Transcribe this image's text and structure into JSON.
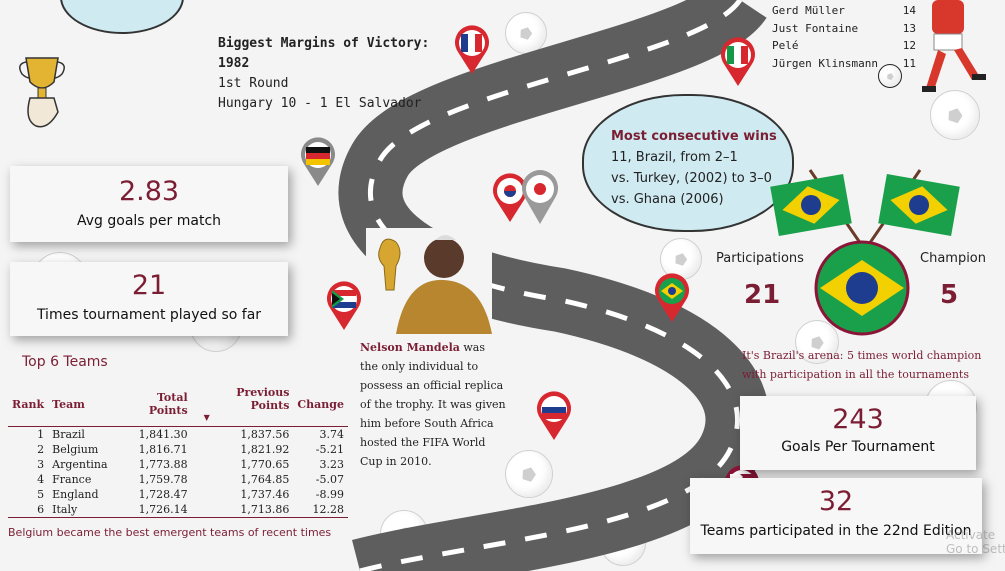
{
  "margins": {
    "title": "Biggest Margins of Victory:",
    "year": "1982",
    "round": "1st Round",
    "match": "Hungary 10 - 1 El Salvador"
  },
  "scorers": [
    {
      "name": "Gerd Müller",
      "goals": "14"
    },
    {
      "name": "Just Fontaine",
      "goals": "13"
    },
    {
      "name": "Pelé",
      "goals": "12"
    },
    {
      "name": "Jürgen Klinsmann",
      "goals": "11"
    }
  ],
  "stats": {
    "avg_goals_value": "2.83",
    "avg_goals_label": "Avg goals per match",
    "times_played_value": "21",
    "times_played_label": "Times tournament played so far",
    "goals_per_tournament_value": "243",
    "goals_per_tournament_label": "Goals Per Tournament",
    "teams_value": "32",
    "teams_label": "Teams participated in the 22nd Edition"
  },
  "wins": {
    "title": "Most consecutive wins",
    "line1": "11, Brazil, from 2–1",
    "line2": "vs. Turkey, (2002) to 3–0",
    "line3": "vs. Ghana (2006)"
  },
  "brazil": {
    "participations_label": "Participations",
    "participations_value": "21",
    "champion_label": "Champion",
    "champion_value": "5",
    "note_line1": "It's Brazil's arena: 5 times world champion",
    "note_line2": "with participation in all the tournaments"
  },
  "mandela": {
    "name": "Nelson Mandela",
    "text": " was the only individual to possess an official replica of the trophy. It was given him before South Africa hosted the FIFA World Cup in 2010."
  },
  "top_teams": {
    "title": "Top 6 Teams",
    "headers": {
      "rank": "Rank",
      "team": "Team",
      "total": "Total Points",
      "previous": "Previous Points",
      "change": "Change"
    },
    "rows": [
      {
        "rank": "1",
        "team": "Brazil",
        "total": "1,841.30",
        "previous": "1,837.56",
        "change": "3.74"
      },
      {
        "rank": "2",
        "team": "Belgium",
        "total": "1,816.71",
        "previous": "1,821.92",
        "change": "-5.21"
      },
      {
        "rank": "3",
        "team": "Argentina",
        "total": "1,773.88",
        "previous": "1,770.65",
        "change": "3.23"
      },
      {
        "rank": "4",
        "team": "France",
        "total": "1,759.78",
        "previous": "1,764.85",
        "change": "-5.07"
      },
      {
        "rank": "5",
        "team": "England",
        "total": "1,728.47",
        "previous": "1,737.46",
        "change": "-8.99"
      },
      {
        "rank": "6",
        "team": "Italy",
        "total": "1,726.14",
        "previous": "1,713.86",
        "change": "12.28"
      }
    ],
    "footnote": "Belgium became the best emergent teams of recent times"
  },
  "watermark": {
    "line1": "Activate",
    "line2": "Go to Settings"
  },
  "colors": {
    "maroon": "#7b1e34",
    "road": "#6e6e6e"
  }
}
